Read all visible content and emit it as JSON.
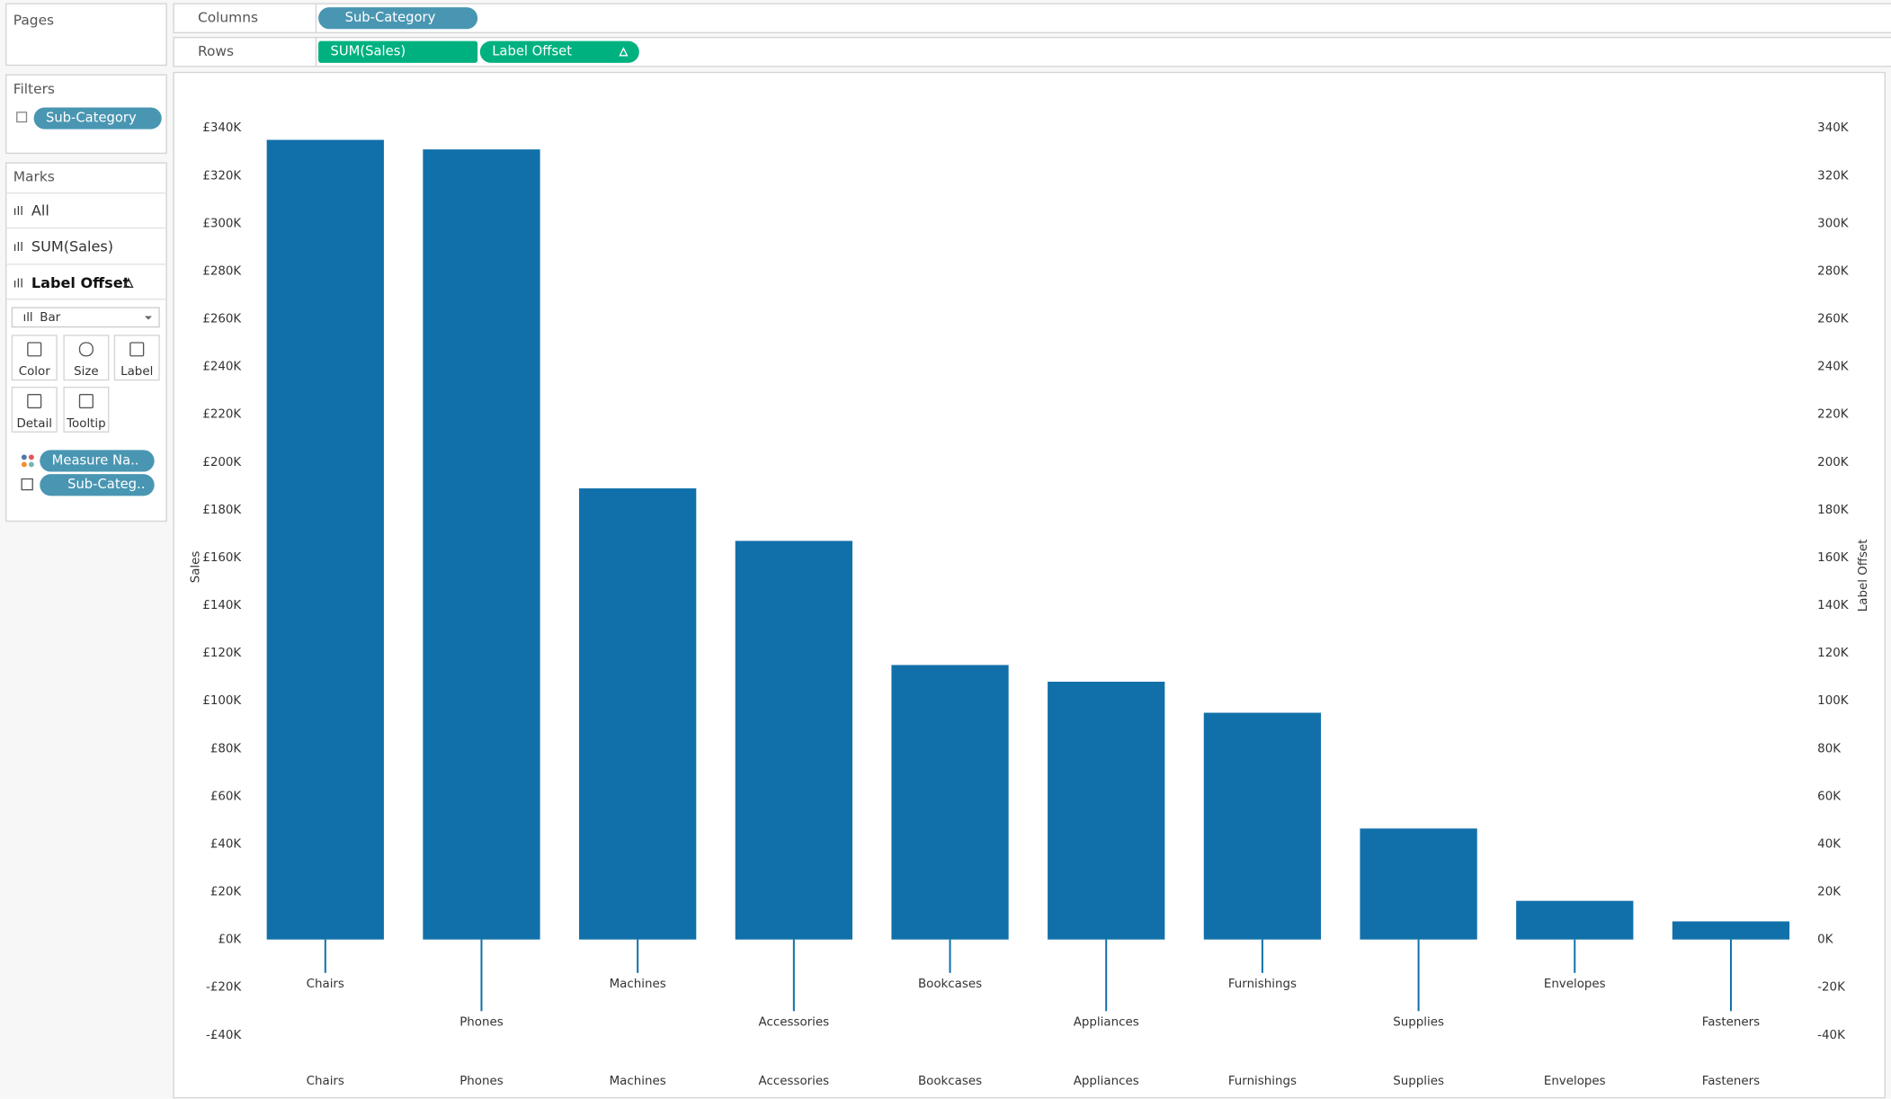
{
  "ui": {
    "pages": "Pages",
    "filters": {
      "title": "Filters",
      "pill": "Sub-Category"
    },
    "marks": {
      "title": "Marks",
      "rows": [
        "All",
        "SUM(Sales)",
        "Label Offset"
      ],
      "mark_type": "Bar",
      "buttons": [
        "Color",
        "Size",
        "Label",
        "Detail",
        "Tooltip"
      ],
      "pills": [
        "Measure Na..",
        "Sub-Categ.."
      ]
    },
    "columns": {
      "label": "Columns",
      "pill": "Sub-Category"
    },
    "rows": {
      "label": "Rows",
      "pills": [
        "SUM(Sales)",
        "Label Offset"
      ]
    }
  },
  "chart_data": {
    "type": "bar",
    "y_label": "Sales",
    "y2_label": "Label Offset",
    "categories": [
      "Chairs",
      "Phones",
      "Machines",
      "Accessories",
      "Bookcases",
      "Appliances",
      "Furnishings",
      "Supplies",
      "Envelopes",
      "Fasteners"
    ],
    "series": [
      {
        "name": "SUM(Sales)",
        "color": "#1170aa",
        "values": [
          335000,
          331000,
          189000,
          167000,
          115000,
          108000,
          95000,
          46500,
          16200,
          7600
        ]
      },
      {
        "name": "Label Offset",
        "color": "#1170aa",
        "axis": "y2",
        "values": [
          -14000,
          -30000,
          -14000,
          -30000,
          -14000,
          -30000,
          -14000,
          -30000,
          -14000,
          -30000
        ]
      }
    ],
    "ylim": [
      -40000,
      340000
    ],
    "yticks": [
      {
        "value": -40000,
        "label": "-£40K"
      },
      {
        "value": -20000,
        "label": "-£20K"
      },
      {
        "value": 0,
        "label": "£0K"
      },
      {
        "value": 20000,
        "label": "£20K"
      },
      {
        "value": 40000,
        "label": "£40K"
      },
      {
        "value": 60000,
        "label": "£60K"
      },
      {
        "value": 80000,
        "label": "£80K"
      },
      {
        "value": 100000,
        "label": "£100K"
      },
      {
        "value": 120000,
        "label": "£120K"
      },
      {
        "value": 140000,
        "label": "£140K"
      },
      {
        "value": 160000,
        "label": "£160K"
      },
      {
        "value": 180000,
        "label": "£180K"
      },
      {
        "value": 200000,
        "label": "£200K"
      },
      {
        "value": 220000,
        "label": "£220K"
      },
      {
        "value": 240000,
        "label": "£240K"
      },
      {
        "value": 260000,
        "label": "£260K"
      },
      {
        "value": 280000,
        "label": "£280K"
      },
      {
        "value": 300000,
        "label": "£300K"
      },
      {
        "value": 320000,
        "label": "£320K"
      },
      {
        "value": 340000,
        "label": "£340K"
      }
    ],
    "y2lim": [
      -40000,
      340000
    ],
    "y2ticks": [
      {
        "value": -40000,
        "label": "-40K"
      },
      {
        "value": -20000,
        "label": "-20K"
      },
      {
        "value": 0,
        "label": "0K"
      },
      {
        "value": 20000,
        "label": "20K"
      },
      {
        "value": 40000,
        "label": "40K"
      },
      {
        "value": 60000,
        "label": "60K"
      },
      {
        "value": 80000,
        "label": "80K"
      },
      {
        "value": 100000,
        "label": "100K"
      },
      {
        "value": 120000,
        "label": "120K"
      },
      {
        "value": 140000,
        "label": "140K"
      },
      {
        "value": 160000,
        "label": "160K"
      },
      {
        "value": 180000,
        "label": "180K"
      },
      {
        "value": 200000,
        "label": "200K"
      },
      {
        "value": 220000,
        "label": "220K"
      },
      {
        "value": 240000,
        "label": "240K"
      },
      {
        "value": 260000,
        "label": "260K"
      },
      {
        "value": 280000,
        "label": "280K"
      },
      {
        "value": 300000,
        "label": "300K"
      },
      {
        "value": 320000,
        "label": "320K"
      },
      {
        "value": 340000,
        "label": "340K"
      }
    ],
    "grid": false
  }
}
